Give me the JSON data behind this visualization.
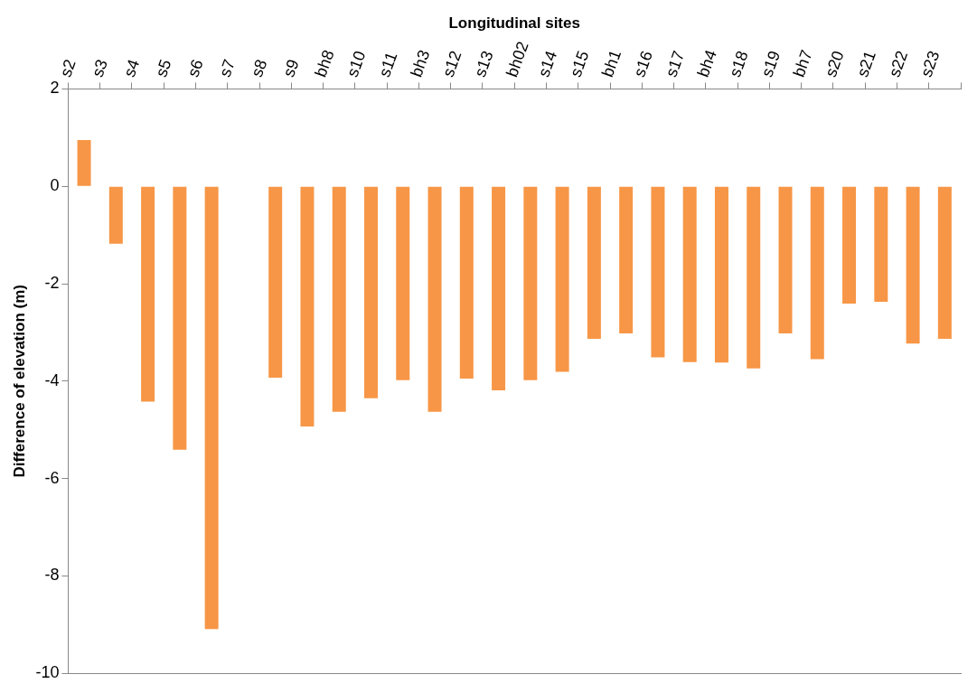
{
  "chart_data": {
    "type": "bar",
    "xlabel": "Longitudinal sites",
    "ylabel": "Difference of elevation (m)",
    "categories": [
      "s2",
      "s3",
      "s4",
      "s5",
      "s6",
      "s7",
      "s8",
      "s9",
      "bh8",
      "s10",
      "s11",
      "bh3",
      "s12",
      "s13",
      "bh02",
      "s14",
      "s15",
      "bh1",
      "s16",
      "s17",
      "bh4",
      "s18",
      "s19",
      "bh7",
      "s20",
      "s21",
      "s22",
      "s23"
    ],
    "values": [
      0.95,
      -1.18,
      -4.42,
      -5.41,
      -9.09,
      null,
      -3.93,
      -4.93,
      -4.63,
      -4.35,
      -3.98,
      -4.63,
      -3.95,
      -4.19,
      -3.98,
      -3.81,
      -3.13,
      -3.02,
      -3.51,
      -3.61,
      -3.62,
      -3.74,
      -3.02,
      -3.55,
      -2.41,
      -2.37,
      -3.23,
      -3.13
    ],
    "color": "#f79646",
    "ylim": [
      -10,
      2
    ],
    "yticks": [
      -10,
      -8,
      -6,
      -4,
      -2,
      0,
      2
    ],
    "grid": false,
    "legend": false
  }
}
